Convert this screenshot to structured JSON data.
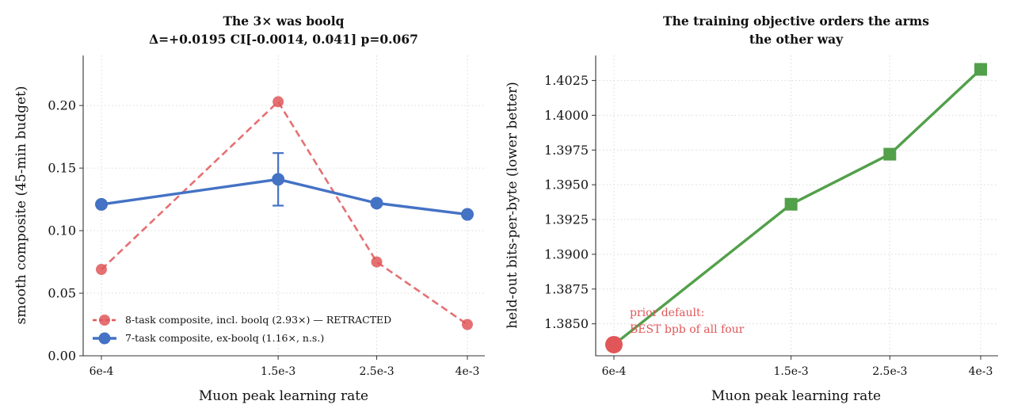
{
  "chart_data": [
    {
      "type": "line",
      "title_line1": "The 3× was boolq",
      "title_line2": "Δ=+0.0195 CI[-0.0014, 0.041] p=0.067",
      "xlabel": "Muon peak learning rate",
      "ylabel": "smooth composite (45-min budget)",
      "x_scale": "log",
      "categories": [
        "6e-4",
        "1.5e-3",
        "2.5e-3",
        "4e-3"
      ],
      "x": [
        0.0006,
        0.0015,
        0.0025,
        0.004
      ],
      "ylim": [
        0,
        0.24
      ],
      "yticks": [
        "0.00",
        "0.05",
        "0.10",
        "0.15",
        "0.20"
      ],
      "ytick_values": [
        0,
        0.05,
        0.1,
        0.15,
        0.2
      ],
      "grid": true,
      "legend_position": "lower-left",
      "series": [
        {
          "name": "8-task composite, incl. boolq (2.93×) — RETRACTED",
          "values": [
            0.069,
            0.203,
            0.075,
            0.025
          ],
          "color": "#e15759",
          "style": "dashed",
          "marker": "circle"
        },
        {
          "name": "7-task composite, ex-boolq (1.16×, n.s.)",
          "values": [
            0.121,
            0.141,
            0.122,
            0.113
          ],
          "color": "#4472c4",
          "style": "solid",
          "marker": "circle",
          "errorbar": {
            "x": 0.0015,
            "low": 0.12,
            "high": 0.162
          }
        }
      ]
    },
    {
      "type": "line",
      "title_line1": "The training objective orders the arms",
      "title_line2": "the other way",
      "xlabel": "Muon peak learning rate",
      "ylabel": "held-out bits-per-byte (lower better)",
      "x_scale": "log",
      "categories": [
        "6e-4",
        "1.5e-3",
        "2.5e-3",
        "4e-3"
      ],
      "x": [
        0.0006,
        0.0015,
        0.0025,
        0.004
      ],
      "ylim": [
        1.3827,
        1.4043
      ],
      "yticks": [
        "1.3850",
        "1.3875",
        "1.3900",
        "1.3925",
        "1.3950",
        "1.3975",
        "1.4000",
        "1.4025"
      ],
      "ytick_values": [
        1.385,
        1.3875,
        1.39,
        1.3925,
        1.395,
        1.3975,
        1.4,
        1.4025
      ],
      "grid": true,
      "series": [
        {
          "name": "",
          "values": [
            1.3835,
            1.3936,
            1.3972,
            1.4033
          ],
          "color": "#52a04a",
          "style": "solid",
          "marker": "square"
        }
      ],
      "highlight": {
        "x": 0.0006,
        "y": 1.3835,
        "color": "#e15759"
      },
      "annotation_line1": "prior default:",
      "annotation_line2": "BEST bpb of all four"
    }
  ]
}
